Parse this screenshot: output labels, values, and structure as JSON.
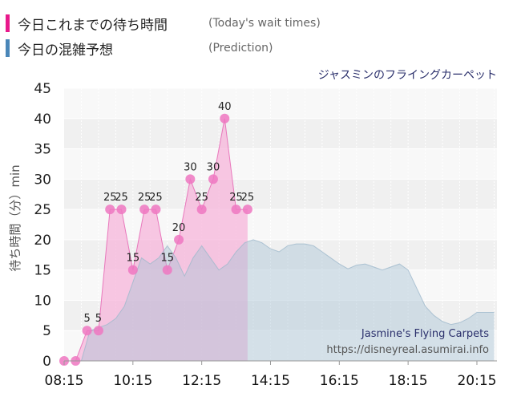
{
  "legend": [
    {
      "label": "今日これまでの待ち時間",
      "sub": "(Today's wait times)",
      "color": "#e8198b"
    },
    {
      "label": "今日の混雑予想",
      "sub": "(Prediction)",
      "color": "#4a86b8"
    }
  ],
  "ride_name": "ジャスミンのフライングカーペット",
  "attribution": {
    "name": "Jasmine's Flying Carpets",
    "url": "https://disneyreal.asumirai.info"
  },
  "chart_data": {
    "type": "area",
    "ylabel": "待ち時間（分）min",
    "ylim": [
      0,
      45
    ],
    "yticks": [
      0,
      5,
      10,
      15,
      20,
      25,
      30,
      35,
      40,
      45
    ],
    "xlim": [
      "08:15",
      "20:50"
    ],
    "xticks": [
      "08:15",
      "10:15",
      "12:15",
      "14:15",
      "16:15",
      "18:15",
      "20:15"
    ],
    "series": [
      {
        "key": "today",
        "color": "#e8198b",
        "labeled": true,
        "x": [
          "08:15",
          "08:35",
          "08:55",
          "09:15",
          "09:35",
          "09:55",
          "10:15",
          "10:35",
          "10:55",
          "11:15",
          "11:35",
          "11:55",
          "12:15",
          "12:35",
          "12:55",
          "13:15",
          "13:35",
          "13:55",
          "14:15",
          "14:35",
          "14:55",
          "15:15",
          "15:35",
          "15:55",
          "16:15"
        ],
        "y": [
          0,
          0,
          5,
          5,
          25,
          25,
          15,
          25,
          25,
          15,
          20,
          30,
          25,
          30,
          40,
          25,
          25,
          null,
          null,
          null,
          null,
          null,
          null,
          null,
          null
        ]
      },
      {
        "key": "prediction",
        "color": "#9fbbd0",
        "labeled": false,
        "x": [
          "08:15",
          "08:45",
          "09:00",
          "09:30",
          "09:45",
          "10:00",
          "10:15",
          "10:30",
          "10:45",
          "11:00",
          "11:15",
          "11:30",
          "11:45",
          "12:00",
          "12:15",
          "12:30",
          "12:45",
          "13:00",
          "13:15",
          "13:30",
          "13:45",
          "14:00",
          "14:15",
          "14:30",
          "14:45",
          "15:00",
          "15:15",
          "15:30",
          "15:45",
          "16:00",
          "16:15",
          "16:30",
          "16:45",
          "17:00",
          "17:15",
          "17:30",
          "17:45",
          "18:00",
          "18:15",
          "18:30",
          "18:45",
          "19:00",
          "19:15",
          "19:30",
          "19:45",
          "20:00",
          "20:15",
          "20:30",
          "20:45"
        ],
        "y": [
          0,
          0,
          5,
          6,
          7,
          9,
          13,
          17,
          16,
          17,
          19,
          17,
          14,
          17,
          19,
          17,
          15,
          16,
          18,
          19.5,
          20,
          19.5,
          18.5,
          18,
          19,
          19.3,
          19.3,
          19,
          18,
          17,
          16,
          15.2,
          15.8,
          16,
          15.5,
          15,
          15.5,
          16,
          15,
          12,
          9,
          7.5,
          6.5,
          6,
          6.3,
          7,
          8,
          8,
          8
        ]
      }
    ]
  }
}
